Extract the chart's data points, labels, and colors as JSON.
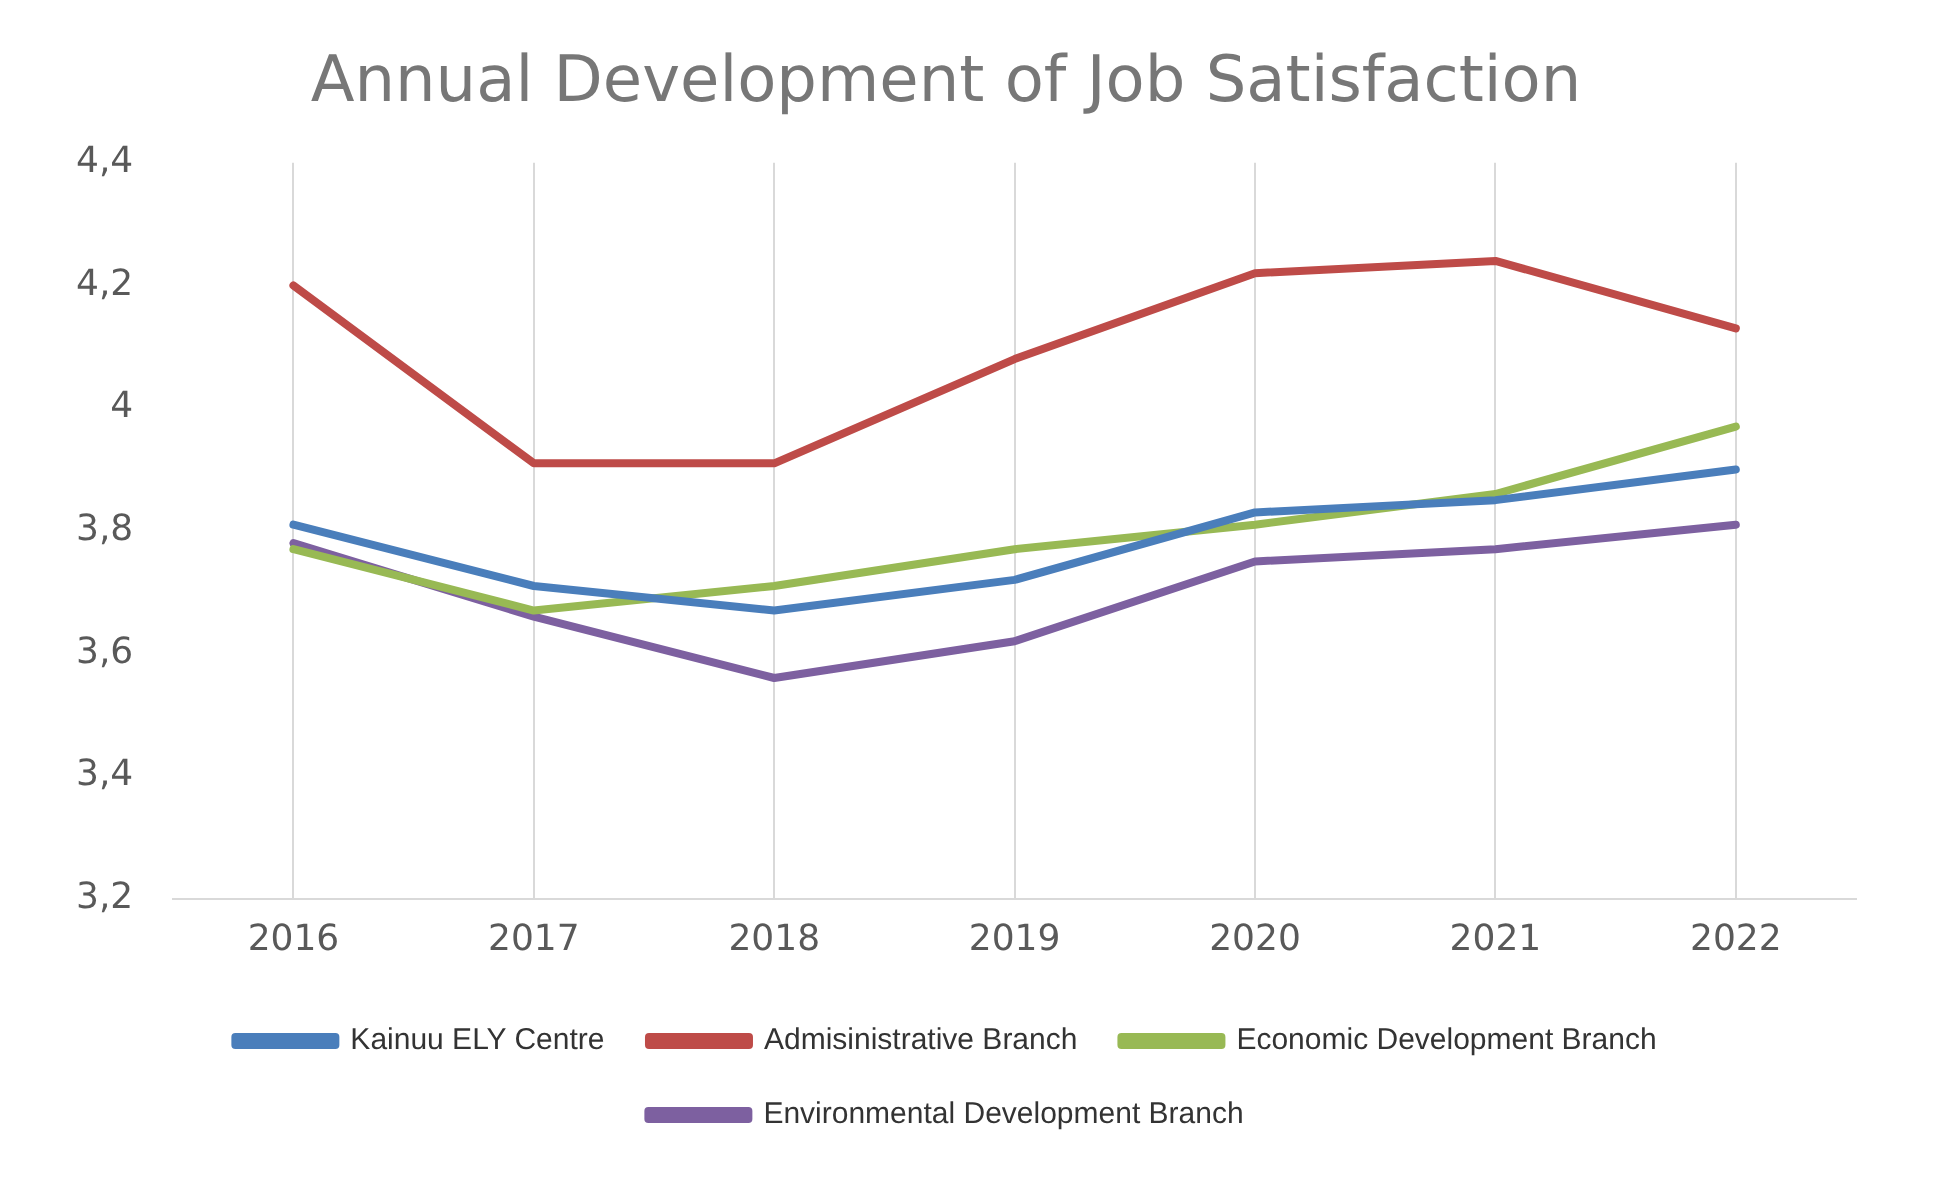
{
  "chart_data": {
    "type": "line",
    "title": "Annual Development of Job Satisfaction",
    "categories": [
      "2016",
      "2017",
      "2018",
      "2019",
      "2020",
      "2021",
      "2022"
    ],
    "series": [
      {
        "name": "Kainuu ELY Centre",
        "color": "#4a7ebb",
        "values": [
          3.81,
          3.71,
          3.67,
          3.72,
          3.83,
          3.85,
          3.9
        ]
      },
      {
        "name": "Admisinistrative Branch",
        "color": "#be4b48",
        "values": [
          4.2,
          3.91,
          3.91,
          4.08,
          4.22,
          4.24,
          4.13
        ]
      },
      {
        "name": "Economic Development Branch",
        "color": "#98b954",
        "values": [
          3.77,
          3.67,
          3.71,
          3.77,
          3.81,
          3.86,
          3.97
        ]
      },
      {
        "name": "Environmental Development Branch",
        "color": "#7d60a0",
        "values": [
          3.78,
          3.66,
          3.56,
          3.62,
          3.75,
          3.77,
          3.81
        ]
      }
    ],
    "ylim": [
      3.2,
      4.4
    ],
    "yticks": [
      {
        "value": 3.2,
        "label": "3,2"
      },
      {
        "value": 3.4,
        "label": "3,4"
      },
      {
        "value": 3.6,
        "label": "3,6"
      },
      {
        "value": 3.8,
        "label": "3,8"
      },
      {
        "value": 4,
        "label": "4"
      },
      {
        "value": 4.2,
        "label": "4,2"
      },
      {
        "value": 4.4,
        "label": "4,4"
      }
    ],
    "grid": "x",
    "legend": "bottom",
    "marker": "none",
    "line_style": "solid"
  }
}
